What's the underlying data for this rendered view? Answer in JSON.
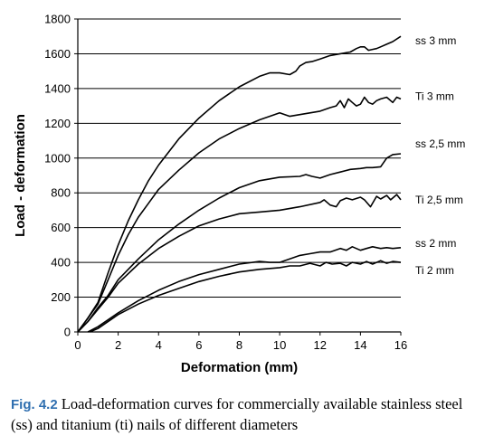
{
  "chart_data": {
    "type": "line",
    "xlabel": "Deformation (mm)",
    "ylabel": "Load - deformation",
    "xlim": [
      0,
      16
    ],
    "ylim": [
      0,
      1800
    ],
    "xticks": [
      0,
      2,
      4,
      6,
      8,
      10,
      12,
      14,
      16
    ],
    "yticks": [
      0,
      200,
      400,
      600,
      800,
      1000,
      1200,
      1400,
      1600,
      1800
    ],
    "grid": "horizontal",
    "legend": "labels at right end of each curve",
    "series": [
      {
        "name": "ss 3 mm",
        "x": [
          0,
          0.5,
          1,
          1.5,
          2,
          2.5,
          3,
          3.5,
          4,
          5,
          6,
          7,
          8,
          9,
          9.5,
          10,
          10.5,
          10.8,
          11,
          11.3,
          11.6,
          12,
          12.5,
          13,
          13.5,
          13.8,
          14,
          14.2,
          14.4,
          14.6,
          14.8,
          15,
          15.3,
          15.6,
          16
        ],
        "y": [
          0,
          80,
          170,
          340,
          500,
          640,
          760,
          870,
          960,
          1110,
          1230,
          1330,
          1410,
          1470,
          1490,
          1490,
          1480,
          1500,
          1530,
          1550,
          1555,
          1570,
          1590,
          1600,
          1610,
          1630,
          1640,
          1640,
          1620,
          1625,
          1630,
          1640,
          1655,
          1670,
          1700
        ]
      },
      {
        "name": "Ti 3 mm",
        "x": [
          0,
          0.5,
          1,
          1.5,
          2,
          2.5,
          3,
          3.5,
          4,
          5,
          6,
          7,
          8,
          9,
          9.5,
          10,
          10.5,
          11,
          11.5,
          12,
          12.5,
          12.8,
          13,
          13.2,
          13.4,
          13.6,
          13.8,
          14,
          14.2,
          14.4,
          14.6,
          14.8,
          15,
          15.3,
          15.6,
          15.8,
          16
        ],
        "y": [
          0,
          80,
          160,
          300,
          440,
          560,
          660,
          740,
          820,
          930,
          1030,
          1110,
          1170,
          1220,
          1240,
          1260,
          1240,
          1250,
          1260,
          1270,
          1290,
          1300,
          1330,
          1290,
          1340,
          1320,
          1300,
          1310,
          1350,
          1320,
          1310,
          1330,
          1340,
          1350,
          1320,
          1350,
          1340
        ]
      },
      {
        "name": "ss 2,5 mm",
        "x": [
          0,
          0.5,
          1,
          1.5,
          2,
          3,
          4,
          5,
          6,
          7,
          8,
          9,
          10,
          11,
          11.3,
          11.6,
          12,
          12.5,
          13,
          13.5,
          14,
          14.3,
          14.6,
          15,
          15.3,
          15.6,
          16
        ],
        "y": [
          0,
          60,
          140,
          210,
          300,
          420,
          530,
          620,
          700,
          770,
          830,
          870,
          890,
          895,
          905,
          895,
          885,
          905,
          920,
          935,
          940,
          945,
          945,
          950,
          1000,
          1020,
          1025
        ]
      },
      {
        "name": "Ti 2,5 mm",
        "x": [
          0,
          0.5,
          1,
          1.5,
          2,
          3,
          4,
          5,
          6,
          7,
          8,
          9,
          10,
          11,
          12,
          12.2,
          12.5,
          12.8,
          13,
          13.3,
          13.6,
          14,
          14.2,
          14.5,
          14.8,
          15,
          15.3,
          15.5,
          15.8,
          16
        ],
        "y": [
          0,
          60,
          130,
          200,
          280,
          390,
          480,
          550,
          610,
          650,
          680,
          690,
          700,
          720,
          745,
          760,
          730,
          720,
          755,
          770,
          760,
          775,
          760,
          720,
          780,
          765,
          785,
          760,
          790,
          760
        ]
      },
      {
        "name": "ss 2 mm",
        "x": [
          0.5,
          1,
          2,
          3,
          4,
          5,
          6,
          7,
          8,
          9,
          9.5,
          10,
          10.5,
          11,
          11.5,
          12,
          12.5,
          13,
          13.3,
          13.6,
          14,
          14.3,
          14.6,
          15,
          15.3,
          15.6,
          16
        ],
        "y": [
          0,
          30,
          110,
          180,
          240,
          290,
          330,
          360,
          390,
          405,
          400,
          400,
          420,
          440,
          450,
          460,
          460,
          480,
          470,
          490,
          470,
          480,
          490,
          480,
          485,
          480,
          485
        ]
      },
      {
        "name": "Ti 2 mm",
        "x": [
          0.6,
          1,
          2,
          3,
          4,
          5,
          6,
          7,
          8,
          9,
          10,
          10.5,
          11,
          11.5,
          12,
          12.3,
          12.6,
          13,
          13.3,
          13.6,
          14,
          14.3,
          14.6,
          15,
          15.3,
          15.6,
          16
        ],
        "y": [
          0,
          20,
          100,
          160,
          210,
          250,
          290,
          320,
          345,
          360,
          370,
          380,
          380,
          395,
          380,
          400,
          390,
          395,
          380,
          400,
          390,
          405,
          390,
          410,
          395,
          405,
          400
        ]
      }
    ]
  },
  "caption": {
    "label": "Fig. 4.2",
    "text": " Load-deformation curves for commercially available stainless steel (ss) and titanium (ti) nails of different diameters"
  }
}
